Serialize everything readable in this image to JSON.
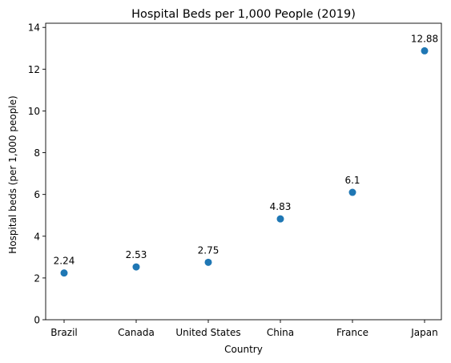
{
  "chart_data": {
    "type": "scatter",
    "title": "Hospital Beds per 1,000 People (2019)",
    "xlabel": "Country",
    "ylabel": "Hospital beds (per 1,000 people)",
    "categories": [
      "Brazil",
      "Canada",
      "United States",
      "China",
      "France",
      "Japan"
    ],
    "values": [
      2.24,
      2.53,
      2.75,
      4.83,
      6.1,
      12.88
    ],
    "data_labels": [
      "2.24",
      "2.53",
      "2.75",
      "4.83",
      "6.1",
      "12.88"
    ],
    "ylim": [
      0,
      14.2
    ],
    "yticks": [
      0,
      2,
      4,
      6,
      8,
      10,
      12,
      14
    ],
    "grid": false,
    "legend": "none",
    "marker_color": "#1f77b4"
  }
}
